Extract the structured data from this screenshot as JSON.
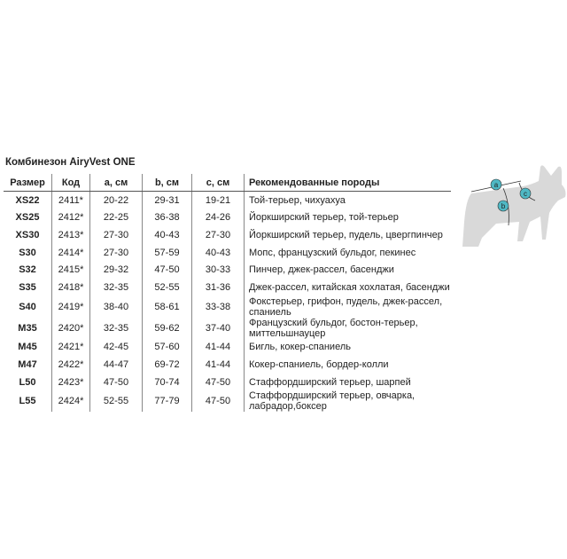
{
  "title": "Комбинезон AiryVest ONE",
  "headers": [
    "Размер",
    "Код",
    "a, см",
    "b, см",
    "c, см",
    "Рекомендованные породы"
  ],
  "rows": [
    [
      "XS22",
      "2411*",
      "20-22",
      "29-31",
      "19-21",
      "Той-терьер, чихуахуа"
    ],
    [
      "XS25",
      "2412*",
      "22-25",
      "36-38",
      "24-26",
      "Йоркширский терьер, той-терьер"
    ],
    [
      "XS30",
      "2413*",
      "27-30",
      "40-43",
      "27-30",
      "Йоркширский терьер, пудель, цвергпинчер"
    ],
    [
      "S30",
      "2414*",
      "27-30",
      "57-59",
      "40-43",
      "Мопс, французский бульдог, пекинес"
    ],
    [
      "S32",
      "2415*",
      "29-32",
      "47-50",
      "30-33",
      "Пинчер, джек-рассел, басенджи"
    ],
    [
      "S35",
      "2418*",
      "32-35",
      "52-55",
      "31-36",
      "Джек-рассел, китайская хохлатая, басенджи"
    ],
    [
      "S40",
      "2419*",
      "38-40",
      "58-61",
      "33-38",
      "Фокстерьер, грифон, пудель, джек-рассел, спаниель"
    ],
    [
      "M35",
      "2420*",
      "32-35",
      "59-62",
      "37-40",
      "Французский бульдог, бостон-терьер, миттельшнауцер"
    ],
    [
      "M45",
      "2421*",
      "42-45",
      "57-60",
      "41-44",
      "Бигль, кокер-спаниель"
    ],
    [
      "M47",
      "2422*",
      "44-47",
      "69-72",
      "41-44",
      "Кокер-спаниель, бордер-колли"
    ],
    [
      "L50",
      "2423*",
      "47-50",
      "70-74",
      "47-50",
      "Стаффордширский терьер, шарпей"
    ],
    [
      "L55",
      "2424*",
      "52-55",
      "77-79",
      "47-50",
      "Стаффордширский терьер, овчарка, лабрадор,боксер"
    ]
  ],
  "diagram": {
    "labels": [
      "a",
      "b",
      "c"
    ],
    "accent": "#4fb8c4",
    "silhouette": "#d9d9d9"
  }
}
